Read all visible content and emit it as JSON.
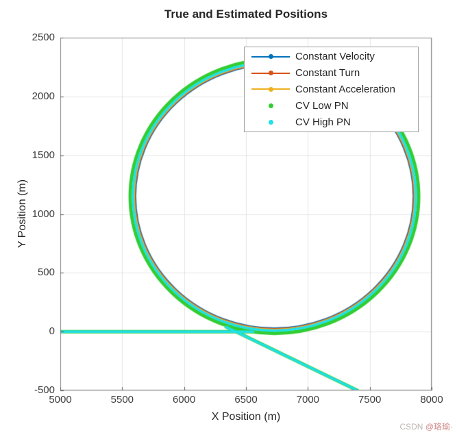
{
  "chart_data": {
    "type": "line",
    "title": "True and Estimated Positions",
    "xlabel": "X Position (m)",
    "ylabel": "Y Position (m)",
    "xlim": [
      5000,
      8000
    ],
    "ylim": [
      -500,
      2500
    ],
    "xticks": [
      5000,
      5500,
      6000,
      6500,
      7000,
      7500,
      8000
    ],
    "yticks": [
      -500,
      0,
      500,
      1000,
      1500,
      2000,
      2500
    ],
    "grid": true,
    "legend": {
      "position": "top-center"
    },
    "trajectory": {
      "description": "Straight approach along y=0, one full circular loop, then straight diagonal exit toward lower right",
      "entry_line": {
        "from": [
          5000,
          0
        ],
        "to": [
          6560,
          0
        ]
      },
      "loop_circle": {
        "center": [
          6730,
          1150
        ],
        "radius": 1165
      },
      "exit_line": {
        "from": [
          6340,
          40
        ],
        "to": [
          7400,
          -500
        ]
      }
    },
    "series": [
      {
        "name": "Constant Velocity",
        "color": "#0072BD",
        "marker": "line-dot",
        "draw": {
          "width": 1.6,
          "radius_offset": -8
        }
      },
      {
        "name": "Constant Turn",
        "color": "#D95319",
        "marker": "line-dot",
        "draw": {
          "width": 1.6,
          "radius_offset": -7
        }
      },
      {
        "name": "Constant Acceleration",
        "color": "#EDB120",
        "marker": "line-dot",
        "draw": {
          "width": 1.6,
          "radius_offset": -6
        }
      },
      {
        "name": "CV Low PN",
        "color": "#32CD32",
        "marker": "dot",
        "draw": {
          "width": 5.0,
          "radius_offset": 0
        }
      },
      {
        "name": "CV High PN",
        "color": "#20E0E8",
        "marker": "dot",
        "draw": {
          "width": 3.5,
          "radius_offset": -4
        }
      }
    ]
  },
  "watermark": {
    "prefix": "CSDN",
    "user": "@珞瑜·"
  }
}
